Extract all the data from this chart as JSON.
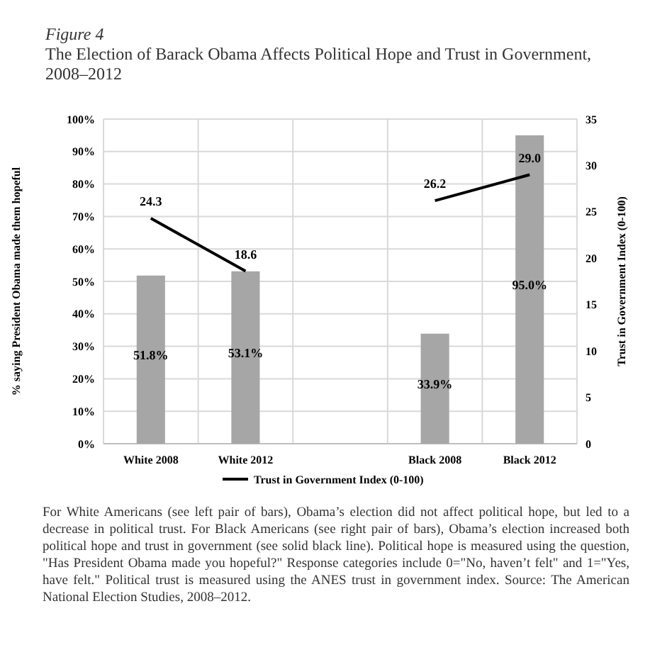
{
  "chart_data": {
    "type": "bar",
    "title": "Figure 4",
    "subtitle": "The Election of Barack Obama Affects Political Hope and Trust in Government, 2008–2012",
    "ylabel": "% saying President Obama made them hopeful",
    "y2label": "Trust in Government Index (0-100)",
    "categories": [
      "White 2008",
      "White 2012",
      null,
      "Black 2008",
      "Black 2012"
    ],
    "series": [
      {
        "color": "#a6a6a6",
        "values": [
          51.8,
          53.1,
          null,
          33.9,
          95.0
        ],
        "value_labels": [
          "51.8%",
          "53.1%",
          null,
          "33.9%",
          "95.0%"
        ]
      },
      {
        "type": "line",
        "name": "Trust in Government Index (0-100)",
        "color": "#000000",
        "axis": "y2",
        "values": [
          24.3,
          18.6,
          null,
          26.2,
          29.0
        ],
        "value_labels": [
          "24.3",
          "18.6",
          null,
          "26.2",
          "29.0"
        ]
      }
    ],
    "ylim": [
      0,
      100
    ],
    "yticks": [
      {
        "value": 0,
        "label": "0%"
      },
      {
        "value": 10,
        "label": "10%"
      },
      {
        "value": 20,
        "label": "20%"
      },
      {
        "value": 30,
        "label": "30%"
      },
      {
        "value": 40,
        "label": "40%"
      },
      {
        "value": 50,
        "label": "50%"
      },
      {
        "value": 60,
        "label": "60%"
      },
      {
        "value": 70,
        "label": "70%"
      },
      {
        "value": 80,
        "label": "80%"
      },
      {
        "value": 90,
        "label": "90%"
      },
      {
        "value": 100,
        "label": "100%"
      }
    ],
    "y2lim": [
      0,
      35
    ],
    "y2ticks": [
      0,
      5,
      10,
      15,
      20,
      25,
      30,
      35
    ],
    "grid": true,
    "legend": "bottom",
    "marker": "none",
    "line_style": "solid",
    "annotations": [
      "For White Americans (see left pair of bars), Obama’s election did not affect political hope, but led to a decrease in political trust. For Black Americans (see right pair of bars), Obama’s election increased both political hope and trust in government (see solid black line). Political hope is measured using the question, \"Has President Obama made you hopeful?\" Response categories include 0=\"No, haven’t felt\" and 1=\"Yes, have felt.\" Political trust is measured using the ANES trust in government index. Source: The American National Election Studies, 2008–2012."
    ]
  }
}
